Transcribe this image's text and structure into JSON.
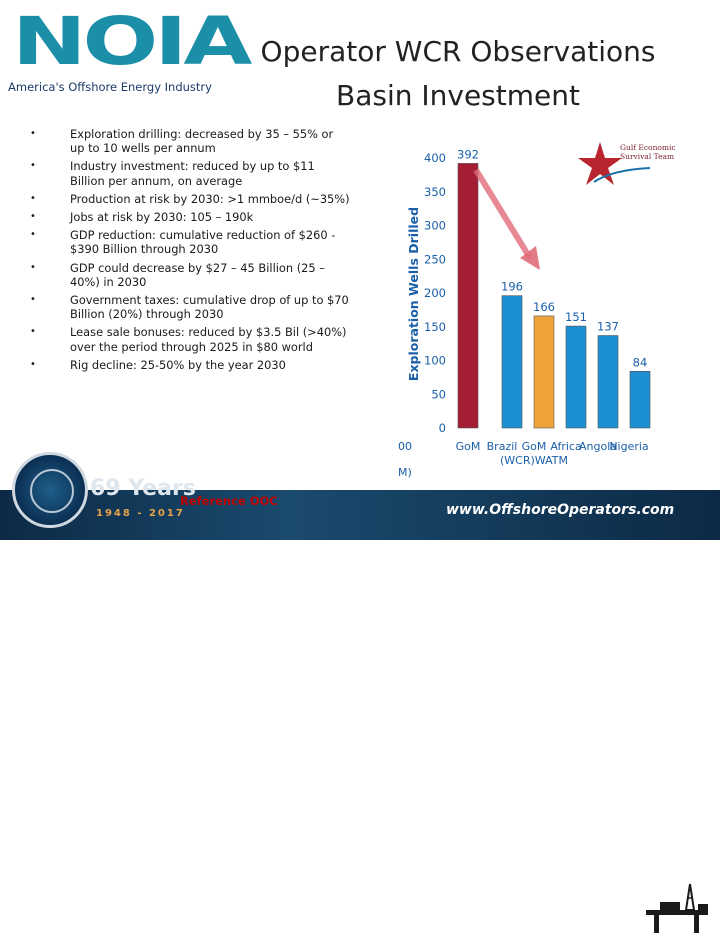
{
  "logo": {
    "wordmark": "NOIA",
    "tagline": "America's Offshore Energy Industry"
  },
  "title": {
    "line1": "Operator WCR Observations",
    "line2": "Basin Investment"
  },
  "bullets": [
    "Exploration drilling: decreased by 35 – 55% or up to 10 wells per annum",
    "Industry investment: reduced by up to $11 Billion per annum, on average",
    "Production at risk by 2030: >1 mmboe/d (~35%)",
    "Jobs at risk by 2030: 105 – 190k",
    "GDP reduction: cumulative reduction of $260 - $390 Billion through 2030",
    "GDP could decrease by $27 – 45 Billion (25 – 40%) in 2030",
    "Government taxes: cumulative drop of up to $70 Billion (20%) through 2030",
    "Lease sale bonuses: reduced by $3.5 Bil (>40%) over the period through 2025 in $80 world",
    "Rig decline: 25-50% by the year 2030"
  ],
  "chart_data": {
    "type": "bar",
    "ylabel": "Exploration Wells Drilled",
    "ylim": [
      0,
      400
    ],
    "yticks": [
      0,
      50,
      100,
      150,
      200,
      250,
      300,
      350,
      400
    ],
    "categories": [
      "GoM",
      "Brazil",
      "GoM (WCR)WATM",
      "Africa",
      "Angola",
      "Nigeria"
    ],
    "values": [
      392,
      196,
      166,
      151,
      137,
      84
    ],
    "bar_colors": [
      "#a51c35",
      "#1b8fd2",
      "#f0a33a",
      "#1b8fd2",
      "#1b8fd2",
      "#1b8fd2"
    ],
    "left_cut_ticks": [
      "00",
      "M)"
    ],
    "badge": "Gulf Economic Survival Team",
    "grid": false
  },
  "footer": {
    "years_label": "69 Years",
    "years_range": "1948 - 2017",
    "reference": "Reference OOC",
    "website": "www.OffshoreOperators.com"
  },
  "colors": {
    "brand_teal": "#1b8fa8",
    "brand_navy": "#1d3b6c",
    "footer_bg": "#0c2a45",
    "reference_red": "#c00000"
  }
}
